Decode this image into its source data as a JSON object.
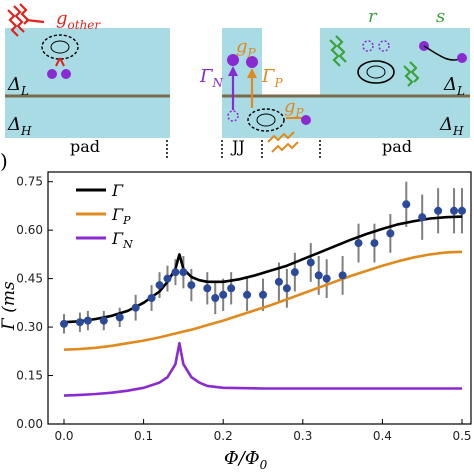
{
  "top_panel": {
    "labels": {
      "g_other": "g",
      "g_other_sub": "other",
      "delta_l": "Δ",
      "delta_l_sub": "L",
      "delta_h": "Δ",
      "delta_h_sub": "H",
      "delta_l_right": "Δ",
      "delta_l_right_sub": "L",
      "delta_h_right": "Δ",
      "delta_h_right_sub": "H",
      "pad_left": "pad",
      "pad_right": "pad",
      "jj": "JJ",
      "gamma_n": "Γ",
      "gamma_n_sub": "N",
      "gamma_p": "Γ",
      "gamma_p_sub": "P",
      "g_p_top": "g",
      "g_p_top_sub": "P",
      "g_p_bottom": "g",
      "g_p_bottom_sub": "P",
      "r": "r",
      "s": "s"
    },
    "colors": {
      "panel_fill": "#a9dbe4",
      "line": "#7a6a4a",
      "purple": "#8a2bd1",
      "orange": "#e08a1e",
      "red": "#e0231c",
      "green": "#3aa33a"
    }
  },
  "chart_data": {
    "type": "line",
    "xlabel": "Φ/Φ",
    "xlabel_sub": "0",
    "ylabel": "Γ (ms",
    "xlim": [
      0.0,
      0.5
    ],
    "ylim": [
      0.0,
      0.78
    ],
    "x_ticks": [
      "0.0",
      "0.1",
      "0.2",
      "0.3",
      "0.4",
      "0.5"
    ],
    "y_ticks": [
      "0.00",
      "0.15",
      "0.30",
      "0.45",
      "0.60",
      "0.75"
    ],
    "legend": {
      "position": "top-left",
      "entries": [
        {
          "label": "Γ",
          "sub": "",
          "color": "#000000"
        },
        {
          "label": "Γ",
          "sub": "P",
          "color": "#e08a1e"
        },
        {
          "label": "Γ",
          "sub": "N",
          "color": "#8a2bd1"
        }
      ]
    },
    "series": [
      {
        "key": "total",
        "color": "#000000",
        "x": [
          0.0,
          0.02,
          0.04,
          0.06,
          0.08,
          0.1,
          0.12,
          0.13,
          0.14,
          0.145,
          0.15,
          0.16,
          0.17,
          0.18,
          0.2,
          0.22,
          0.24,
          0.26,
          0.28,
          0.3,
          0.32,
          0.34,
          0.36,
          0.38,
          0.4,
          0.42,
          0.44,
          0.46,
          0.48,
          0.5
        ],
        "y": [
          0.315,
          0.318,
          0.325,
          0.335,
          0.35,
          0.375,
          0.41,
          0.44,
          0.48,
          0.525,
          0.48,
          0.455,
          0.445,
          0.44,
          0.44,
          0.448,
          0.46,
          0.475,
          0.49,
          0.51,
          0.53,
          0.55,
          0.57,
          0.588,
          0.604,
          0.618,
          0.628,
          0.636,
          0.64,
          0.642
        ]
      },
      {
        "key": "gamma_p",
        "color": "#e08a1e",
        "x": [
          0.0,
          0.02,
          0.04,
          0.06,
          0.08,
          0.1,
          0.12,
          0.14,
          0.16,
          0.18,
          0.2,
          0.22,
          0.24,
          0.26,
          0.28,
          0.3,
          0.32,
          0.34,
          0.36,
          0.38,
          0.4,
          0.42,
          0.44,
          0.46,
          0.48,
          0.5
        ],
        "y": [
          0.23,
          0.232,
          0.236,
          0.242,
          0.25,
          0.258,
          0.268,
          0.28,
          0.292,
          0.306,
          0.32,
          0.336,
          0.352,
          0.368,
          0.386,
          0.404,
          0.422,
          0.44,
          0.458,
          0.474,
          0.49,
          0.504,
          0.516,
          0.525,
          0.531,
          0.533
        ]
      },
      {
        "key": "gamma_n",
        "color": "#8a2bd1",
        "x": [
          0.0,
          0.02,
          0.04,
          0.06,
          0.08,
          0.1,
          0.12,
          0.13,
          0.14,
          0.145,
          0.15,
          0.16,
          0.17,
          0.18,
          0.2,
          0.25,
          0.3,
          0.35,
          0.4,
          0.45,
          0.5
        ],
        "y": [
          0.088,
          0.09,
          0.093,
          0.097,
          0.103,
          0.112,
          0.128,
          0.145,
          0.185,
          0.25,
          0.185,
          0.145,
          0.128,
          0.118,
          0.112,
          0.11,
          0.11,
          0.11,
          0.11,
          0.11,
          0.11
        ]
      }
    ],
    "points": {
      "color": "#2b4a9a",
      "x": [
        0.0,
        0.02,
        0.03,
        0.05,
        0.07,
        0.09,
        0.11,
        0.12,
        0.13,
        0.14,
        0.15,
        0.16,
        0.18,
        0.19,
        0.2,
        0.21,
        0.23,
        0.25,
        0.27,
        0.28,
        0.29,
        0.31,
        0.32,
        0.33,
        0.35,
        0.37,
        0.39,
        0.41,
        0.43,
        0.45,
        0.47,
        0.49,
        0.5
      ],
      "y": [
        0.31,
        0.315,
        0.32,
        0.32,
        0.33,
        0.36,
        0.39,
        0.43,
        0.45,
        0.47,
        0.47,
        0.43,
        0.42,
        0.39,
        0.4,
        0.42,
        0.4,
        0.4,
        0.44,
        0.42,
        0.47,
        0.5,
        0.46,
        0.45,
        0.46,
        0.56,
        0.56,
        0.59,
        0.68,
        0.64,
        0.66,
        0.66,
        0.66
      ],
      "err": [
        0.03,
        0.03,
        0.03,
        0.03,
        0.03,
        0.04,
        0.04,
        0.04,
        0.04,
        0.04,
        0.05,
        0.05,
        0.05,
        0.05,
        0.05,
        0.05,
        0.05,
        0.05,
        0.06,
        0.06,
        0.06,
        0.06,
        0.06,
        0.06,
        0.06,
        0.06,
        0.06,
        0.06,
        0.07,
        0.07,
        0.07,
        0.07,
        0.07
      ]
    }
  }
}
